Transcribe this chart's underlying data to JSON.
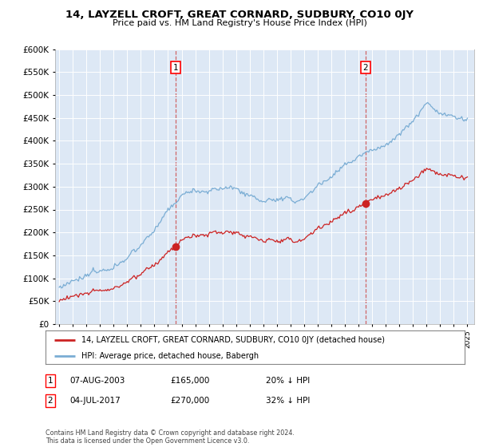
{
  "title1": "14, LAYZELL CROFT, GREAT CORNARD, SUDBURY, CO10 0JY",
  "title2": "Price paid vs. HM Land Registry's House Price Index (HPI)",
  "bg_color": "#dde8f5",
  "hpi_color": "#7aadd4",
  "price_color": "#cc2222",
  "sale1_label": "07-AUG-2003",
  "sale1_price": "£165,000",
  "sale1_note": "20% ↓ HPI",
  "sale2_label": "04-JUL-2017",
  "sale2_price": "£270,000",
  "sale2_note": "32% ↓ HPI",
  "legend_red": "14, LAYZELL CROFT, GREAT CORNARD, SUDBURY, CO10 0JY (detached house)",
  "legend_blue": "HPI: Average price, detached house, Babergh",
  "footnote": "Contains HM Land Registry data © Crown copyright and database right 2024.\nThis data is licensed under the Open Government Licence v3.0.",
  "ylim": [
    0,
    600000
  ],
  "yticks": [
    0,
    50000,
    100000,
    150000,
    200000,
    250000,
    300000,
    350000,
    400000,
    450000,
    500000,
    550000,
    600000
  ],
  "sale1_year": 2003.58,
  "sale2_year": 2017.5,
  "sale1_price_val": 165000,
  "sale2_price_val": 270000,
  "xstart": 1995,
  "xend": 2025
}
